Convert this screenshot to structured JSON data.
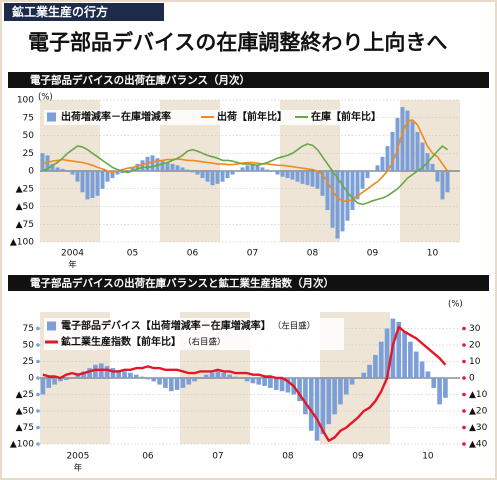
{
  "header": {
    "tag": "鉱工業生産の行方",
    "title": "電子部品デバイスの在庫調整終わり上向きへ"
  },
  "chart_data": [
    {
      "type": "combo",
      "title": "電子部品デバイスの出荷在庫バランス（月次）",
      "y_unit": "(%)",
      "x_unit": "年",
      "band_color": "#efe5d6",
      "grid": true,
      "categories": [
        null,
        null,
        null,
        null,
        null,
        null,
        "2004",
        null,
        null,
        null,
        null,
        null,
        null,
        null,
        null,
        null,
        null,
        null,
        "05",
        null,
        null,
        null,
        null,
        null,
        null,
        null,
        null,
        null,
        null,
        null,
        "06",
        null,
        null,
        null,
        null,
        null,
        null,
        null,
        null,
        null,
        null,
        null,
        "07",
        null,
        null,
        null,
        null,
        null,
        null,
        null,
        null,
        null,
        null,
        null,
        "08",
        null,
        null,
        null,
        null,
        null,
        null,
        null,
        null,
        null,
        null,
        null,
        "09",
        null,
        null,
        null,
        null,
        null,
        null,
        null,
        null,
        null,
        null,
        null,
        "10",
        null,
        null,
        null
      ],
      "ylim": [
        -100,
        100
      ],
      "yticks": [
        100,
        75,
        50,
        25,
        0,
        {
          "value": -25,
          "label": "▲25"
        },
        {
          "value": -50,
          "label": "▲50"
        },
        {
          "value": -75,
          "label": "▲75"
        },
        {
          "value": -100,
          "label": "▲100"
        }
      ],
      "series": [
        {
          "name": "出荷増減率－在庫増減率",
          "type": "bar",
          "color": "#7b9fd6",
          "values": [
            25,
            22,
            10,
            5,
            3,
            0,
            -5,
            -15,
            -30,
            -40,
            -38,
            -35,
            -25,
            -15,
            -10,
            -5,
            -3,
            0,
            5,
            10,
            15,
            20,
            22,
            18,
            15,
            12,
            10,
            8,
            5,
            2,
            -2,
            -5,
            -10,
            -15,
            -20,
            -18,
            -15,
            -10,
            -5,
            0,
            5,
            8,
            10,
            8,
            5,
            2,
            0,
            -5,
            -8,
            -10,
            -12,
            -15,
            -18,
            -20,
            -22,
            -25,
            -35,
            -55,
            -80,
            -95,
            -85,
            -70,
            -55,
            -40,
            -25,
            -10,
            0,
            8,
            20,
            35,
            55,
            75,
            90,
            85,
            70,
            55,
            40,
            25,
            10,
            -15,
            -40,
            -30
          ]
        },
        {
          "name": "出荷【前年比】",
          "type": "line",
          "color": "#ef8a22",
          "values": [
            10,
            12,
            14,
            15,
            16,
            15,
            14,
            13,
            12,
            10,
            8,
            5,
            3,
            0,
            -2,
            0,
            2,
            4,
            5,
            7,
            9,
            11,
            13,
            14,
            15,
            16,
            16,
            17,
            16,
            15,
            15,
            14,
            13,
            12,
            11,
            10,
            10,
            9,
            9,
            10,
            11,
            12,
            12,
            11,
            10,
            10,
            9,
            8,
            8,
            7,
            6,
            5,
            4,
            3,
            2,
            0,
            -5,
            -15,
            -28,
            -38,
            -42,
            -43,
            -40,
            -35,
            -30,
            -25,
            -20,
            -15,
            -8,
            0,
            12,
            30,
            55,
            70,
            72,
            65,
            50,
            35,
            25,
            20,
            10,
            0
          ]
        },
        {
          "name": "在庫【前年比】",
          "type": "line",
          "color": "#67a846",
          "values": [
            0,
            3,
            8,
            12,
            18,
            25,
            30,
            35,
            34,
            30,
            25,
            20,
            15,
            10,
            5,
            2,
            0,
            -2,
            0,
            3,
            5,
            5,
            6,
            8,
            10,
            12,
            15,
            18,
            22,
            28,
            30,
            28,
            25,
            22,
            20,
            18,
            15,
            15,
            14,
            12,
            10,
            10,
            9,
            8,
            10,
            12,
            15,
            18,
            20,
            22,
            25,
            30,
            35,
            38,
            36,
            30,
            20,
            10,
            0,
            -10,
            -20,
            -30,
            -38,
            -45,
            -47,
            -45,
            -42,
            -40,
            -38,
            -35,
            -30,
            -25,
            -18,
            -10,
            -5,
            0,
            5,
            12,
            20,
            28,
            35,
            30
          ]
        }
      ]
    },
    {
      "type": "combo",
      "title": "電子部品デバイスの出荷在庫バランスと鉱工業生産指数（月次）",
      "y2_unit": "(%)",
      "x_unit": "年",
      "band_color": "#efe5d6",
      "grid": true,
      "categories": [
        null,
        null,
        null,
        null,
        null,
        null,
        "2005",
        null,
        null,
        null,
        null,
        null,
        null,
        null,
        null,
        null,
        null,
        null,
        "06",
        null,
        null,
        null,
        null,
        null,
        null,
        null,
        null,
        null,
        null,
        null,
        "07",
        null,
        null,
        null,
        null,
        null,
        null,
        null,
        null,
        null,
        null,
        null,
        "08",
        null,
        null,
        null,
        null,
        null,
        null,
        null,
        null,
        null,
        null,
        null,
        "09",
        null,
        null,
        null,
        null,
        null,
        null,
        null,
        null,
        null,
        null,
        null,
        "10",
        null,
        null,
        null
      ],
      "ylim": [
        -100,
        100
      ],
      "yticks": [
        75,
        50,
        25,
        0,
        {
          "value": -25,
          "label": "▲25"
        },
        {
          "value": -50,
          "label": "▲50"
        },
        {
          "value": -75,
          "label": "▲75"
        },
        {
          "value": -100,
          "label": "▲100"
        }
      ],
      "y2lim": [
        -40,
        40
      ],
      "y2ticks": [
        30,
        20,
        10,
        0,
        {
          "value": -10,
          "label": "▲10"
        },
        {
          "value": -20,
          "label": "▲20"
        },
        {
          "value": -30,
          "label": "▲30"
        },
        {
          "value": -40,
          "label": "▲40"
        }
      ],
      "series": [
        {
          "name": "電子部品デバイス【出荷増減率－在庫増減率】",
          "note": "（左目盛）",
          "type": "bar",
          "color": "#7b9fd6",
          "values": [
            -25,
            -15,
            -10,
            -5,
            -3,
            0,
            5,
            10,
            15,
            20,
            22,
            18,
            15,
            12,
            10,
            8,
            5,
            2,
            -2,
            -5,
            -10,
            -15,
            -20,
            -18,
            -15,
            -10,
            -5,
            0,
            5,
            8,
            10,
            8,
            5,
            2,
            0,
            -5,
            -8,
            -10,
            -12,
            -15,
            -18,
            -20,
            -22,
            -25,
            -35,
            -55,
            -80,
            -95,
            -85,
            -70,
            -55,
            -40,
            -25,
            -10,
            0,
            8,
            20,
            35,
            55,
            75,
            90,
            85,
            70,
            55,
            40,
            25,
            10,
            -15,
            -40,
            -30
          ]
        },
        {
          "name": "鉱工業生産指数【前年比】",
          "note": "（右目盛）",
          "type": "line",
          "axis": "y2",
          "color": "#e2182a",
          "values": [
            2,
            1,
            1,
            0,
            2,
            3,
            2,
            3,
            4,
            5,
            5,
            5,
            4,
            4,
            5,
            5,
            6,
            6,
            7,
            6,
            6,
            5,
            5,
            5,
            4,
            3,
            3,
            4,
            4,
            4,
            5,
            4,
            4,
            3,
            3,
            3,
            2,
            2,
            1,
            1,
            0,
            0,
            -2,
            -5,
            -10,
            -15,
            -20,
            -25,
            -32,
            -38,
            -36,
            -32,
            -30,
            -27,
            -24,
            -20,
            -18,
            -14,
            -8,
            0,
            20,
            31,
            28,
            26,
            24,
            21,
            18,
            15,
            12,
            8
          ]
        }
      ]
    }
  ]
}
